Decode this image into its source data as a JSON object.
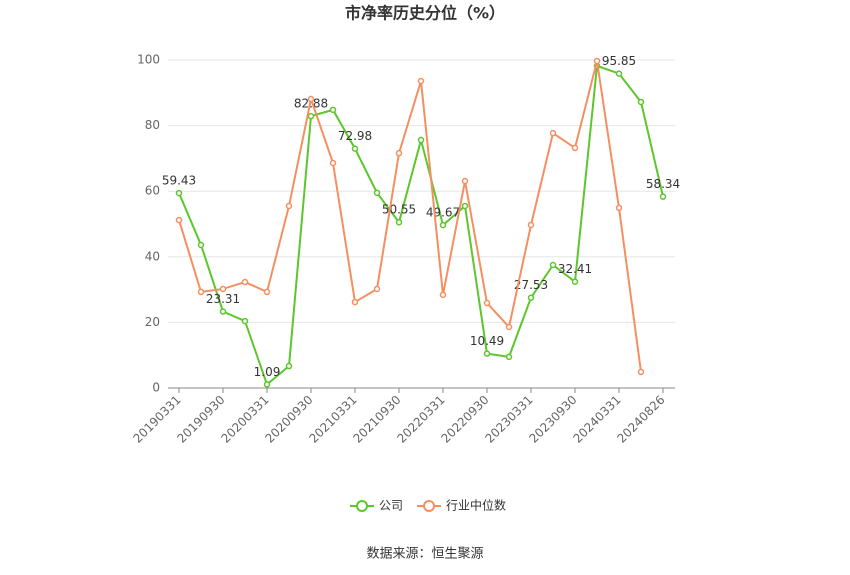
{
  "chart_data": {
    "type": "line",
    "title": "市净率历史分位（%）",
    "categories": [
      "20190331",
      null,
      "20190930",
      null,
      "20200331",
      null,
      "20200930",
      null,
      "20210331",
      null,
      "20210930",
      null,
      "20220331",
      null,
      "20220930",
      null,
      "20230331",
      null,
      "20230930",
      null,
      "20240331",
      null,
      "20240826"
    ],
    "series": [
      {
        "name": "公司",
        "color": "#5cc72c",
        "values": [
          59.43,
          43.6,
          23.31,
          20.4,
          1.09,
          6.7,
          82.88,
          84.8,
          72.98,
          59.5,
          50.55,
          75.6,
          49.67,
          55.5,
          10.49,
          9.5,
          27.53,
          37.5,
          32.41,
          98.2,
          95.85,
          87.2,
          58.34
        ],
        "value_labels": [
          "59.43",
          null,
          "23.31",
          null,
          "1.09",
          null,
          "82.88",
          null,
          "72.98",
          null,
          "50.55",
          null,
          "49.67",
          null,
          "10.49",
          null,
          "27.53",
          null,
          "32.41",
          null,
          "95.85",
          null,
          "58.34"
        ]
      },
      {
        "name": "行业中位数",
        "color": "#f58f62",
        "values": [
          51.2,
          29.3,
          30.2,
          32.3,
          29.3,
          55.5,
          88.1,
          68.6,
          26.2,
          30.2,
          71.6,
          93.6,
          28.4,
          63.1,
          25.9,
          18.6,
          49.7,
          77.7,
          73.2,
          99.7,
          54.9,
          4.9,
          null
        ]
      }
    ],
    "ylim": [
      0,
      100
    ],
    "yticks": [
      0,
      20,
      40,
      60,
      80,
      100
    ],
    "grid": true,
    "source": "数据来源：恒生聚源"
  }
}
